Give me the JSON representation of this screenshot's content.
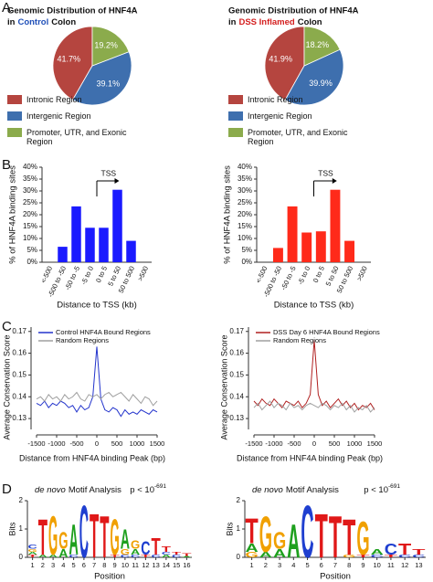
{
  "panel_labels": [
    "A",
    "B",
    "C",
    "D"
  ],
  "chart_data": [
    {
      "type": "pie",
      "title": "Genomic Distribution of HNF4A",
      "subtitle": [
        {
          "text": "in"
        },
        {
          "text": "Control",
          "color": "#1f4fb8"
        },
        {
          "text": "Colon"
        }
      ],
      "categories": [
        "Intronic Region",
        "Intergenic Region",
        "Promoter, UTR, and Exonic Region"
      ],
      "values": [
        41.7,
        39.1,
        19.2
      ],
      "value_labels": [
        "41.7%",
        "39.1%",
        "19.2%"
      ],
      "colors": [
        "#b5453f",
        "#3e6fae",
        "#8bab4c"
      ]
    },
    {
      "type": "pie",
      "title": "Genomic Distribution of HNF4A",
      "subtitle": [
        {
          "text": "in"
        },
        {
          "text": "DSS Inflamed",
          "color": "#d42020"
        },
        {
          "text": "Colon"
        }
      ],
      "categories": [
        "Intronic Region",
        "Intergenic Region",
        "Promoter, UTR, and Exonic Region"
      ],
      "values": [
        41.9,
        39.9,
        18.2
      ],
      "value_labels": [
        "41.9%",
        "39.9%",
        "18.2%"
      ],
      "colors": [
        "#b5453f",
        "#3e6fae",
        "#8bab4c"
      ]
    },
    {
      "type": "bar",
      "annotation": "TSS",
      "categories": [
        "<-500",
        "-500 to -50",
        "-50 to -5",
        "-5 to 0",
        "0 to 5",
        "5 to 50",
        "50 to 500",
        ">500"
      ],
      "values": [
        0,
        6.5,
        23.5,
        14.5,
        14.5,
        30.5,
        9,
        0
      ],
      "color": "#1a1aff",
      "ylim": [
        0,
        40
      ],
      "yticks": [
        {
          "value": 0,
          "label": "0%"
        },
        {
          "value": 5,
          "label": "5%"
        },
        {
          "value": 10,
          "label": "10%"
        },
        {
          "value": 15,
          "label": "15%"
        },
        {
          "value": 20,
          "label": "20%"
        },
        {
          "value": 25,
          "label": "25%"
        },
        {
          "value": 30,
          "label": "30%"
        },
        {
          "value": 35,
          "label": "35%"
        },
        {
          "value": 40,
          "label": "40%"
        }
      ],
      "xlabel": "Distance to TSS (kb)",
      "ylabel": "% of HNF4A binding sites"
    },
    {
      "type": "bar",
      "annotation": "TSS",
      "categories": [
        "<-500",
        "-500 to -50",
        "-50 to -5",
        "-5 to 0",
        "0 to 5",
        "5 to 50",
        "50 to 500",
        ">500"
      ],
      "values": [
        0,
        6,
        23.5,
        12.5,
        13,
        30.5,
        9,
        0
      ],
      "color": "#ff2a1a",
      "ylim": [
        0,
        40
      ],
      "yticks": [
        {
          "value": 0,
          "label": "0%"
        },
        {
          "value": 5,
          "label": "5%"
        },
        {
          "value": 10,
          "label": "10%"
        },
        {
          "value": 15,
          "label": "15%"
        },
        {
          "value": 20,
          "label": "20%"
        },
        {
          "value": 25,
          "label": "25%"
        },
        {
          "value": 30,
          "label": "30%"
        },
        {
          "value": 35,
          "label": "35%"
        },
        {
          "value": 40,
          "label": "40%"
        }
      ],
      "xlabel": "Distance to TSS (kb)",
      "ylabel": "% of HNF4A binding sites"
    },
    {
      "type": "line",
      "x": [
        -1500,
        -1400,
        -1300,
        -1200,
        -1100,
        -1000,
        -900,
        -800,
        -700,
        -600,
        -500,
        -400,
        -300,
        -200,
        -100,
        0,
        100,
        200,
        300,
        400,
        500,
        600,
        700,
        800,
        900,
        1000,
        1100,
        1200,
        1300,
        1400,
        1500
      ],
      "series": [
        {
          "name": "Control HNF4A Bound Regions",
          "color": "#2233cc",
          "values": [
            0.137,
            0.136,
            0.138,
            0.135,
            0.137,
            0.136,
            0.138,
            0.137,
            0.135,
            0.136,
            0.133,
            0.136,
            0.134,
            0.135,
            0.14,
            0.163,
            0.139,
            0.134,
            0.133,
            0.135,
            0.134,
            0.131,
            0.134,
            0.132,
            0.133,
            0.132,
            0.134,
            0.133,
            0.132,
            0.134,
            0.133
          ]
        },
        {
          "name": "Random Regions",
          "color": "#a0a0a0",
          "values": [
            0.139,
            0.14,
            0.138,
            0.141,
            0.139,
            0.14,
            0.138,
            0.141,
            0.139,
            0.14,
            0.142,
            0.139,
            0.138,
            0.141,
            0.14,
            0.141,
            0.139,
            0.141,
            0.142,
            0.14,
            0.141,
            0.142,
            0.14,
            0.138,
            0.141,
            0.139,
            0.137,
            0.14,
            0.139,
            0.136,
            0.138
          ]
        }
      ],
      "xlim": [
        -1500,
        1500
      ],
      "xticks": [
        -1500,
        -1000,
        -500,
        0,
        500,
        1000,
        1500
      ],
      "ylim": [
        0.125,
        0.172
      ],
      "yticks": [
        0.13,
        0.14,
        0.15,
        0.16,
        0.17
      ],
      "xlabel": "Distance from  HNF4A binding Peak (bp)",
      "ylabel": "Average Conservation Score"
    },
    {
      "type": "line",
      "x": [
        -1500,
        -1400,
        -1300,
        -1200,
        -1100,
        -1000,
        -900,
        -800,
        -700,
        -600,
        -500,
        -400,
        -300,
        -200,
        -100,
        0,
        100,
        200,
        300,
        400,
        500,
        600,
        700,
        800,
        900,
        1000,
        1100,
        1200,
        1300,
        1400,
        1500
      ],
      "series": [
        {
          "name": "DSS Day 6 HNF4A Bound Regions",
          "color": "#b02020",
          "values": [
            0.138,
            0.136,
            0.139,
            0.137,
            0.136,
            0.139,
            0.137,
            0.135,
            0.138,
            0.137,
            0.136,
            0.138,
            0.135,
            0.137,
            0.141,
            0.166,
            0.141,
            0.136,
            0.138,
            0.135,
            0.137,
            0.139,
            0.136,
            0.138,
            0.135,
            0.137,
            0.134,
            0.136,
            0.135,
            0.137,
            0.134
          ]
        },
        {
          "name": "Random Regions",
          "color": "#a0a0a0",
          "values": [
            0.135,
            0.137,
            0.134,
            0.136,
            0.138,
            0.135,
            0.137,
            0.136,
            0.134,
            0.137,
            0.135,
            0.136,
            0.134,
            0.136,
            0.137,
            0.136,
            0.135,
            0.137,
            0.136,
            0.134,
            0.136,
            0.135,
            0.137,
            0.134,
            0.136,
            0.133,
            0.135,
            0.134,
            0.136,
            0.133,
            0.135
          ]
        }
      ],
      "xlim": [
        -1500,
        1500
      ],
      "xticks": [
        -1500,
        -1000,
        -500,
        0,
        500,
        1000,
        1500
      ],
      "ylim": [
        0.125,
        0.172
      ],
      "yticks": [
        0.13,
        0.14,
        0.15,
        0.16,
        0.17
      ],
      "xlabel": "Distance from  HNF4A binding Peak (bp)",
      "ylabel": "Average Conservation Score"
    },
    {
      "type": "logo",
      "title": [
        {
          "text": "de novo",
          "style": "italic"
        },
        {
          "text": "Motif Analysis"
        }
      ],
      "annotation": "p < 10",
      "annotation_exponent": "-691",
      "letter_colors": {
        "A": "#1ea01e",
        "C": "#1f3fd0",
        "G": "#f0a000",
        "T": "#e01818"
      },
      "xticks": [
        1,
        2,
        3,
        4,
        5,
        6,
        7,
        8,
        9,
        10,
        11,
        12,
        13,
        14,
        15,
        16
      ],
      "positions": [
        [
          {
            "letter": "T",
            "bits": 0.1
          },
          {
            "letter": "A",
            "bits": 0.1
          },
          {
            "letter": "G",
            "bits": 0.1
          },
          {
            "letter": "C",
            "bits": 0.15
          }
        ],
        [
          {
            "letter": "A",
            "bits": 0.1
          },
          {
            "letter": "T",
            "bits": 1.3
          }
        ],
        [
          {
            "letter": "A",
            "bits": 0.1
          },
          {
            "letter": "G",
            "bits": 1.4
          }
        ],
        [
          {
            "letter": "A",
            "bits": 0.3
          },
          {
            "letter": "G",
            "bits": 0.6
          }
        ],
        [
          {
            "letter": "C",
            "bits": 0.1
          },
          {
            "letter": "A",
            "bits": 1.1
          }
        ],
        [
          {
            "letter": "C",
            "bits": 1.9
          }
        ],
        [
          {
            "letter": "T",
            "bits": 1.6
          }
        ],
        [
          {
            "letter": "T",
            "bits": 1.5
          }
        ],
        [
          {
            "letter": "T",
            "bits": 0.1
          },
          {
            "letter": "G",
            "bits": 1.3
          }
        ],
        [
          {
            "letter": "C",
            "bits": 0.1
          },
          {
            "letter": "G",
            "bits": 0.2
          },
          {
            "letter": "A",
            "bits": 0.7
          }
        ],
        [
          {
            "letter": "C",
            "bits": 0.1
          },
          {
            "letter": "A",
            "bits": 0.2
          },
          {
            "letter": "G",
            "bits": 0.3
          }
        ],
        [
          {
            "letter": "T",
            "bits": 0.1
          },
          {
            "letter": "C",
            "bits": 0.5
          }
        ],
        [
          {
            "letter": "C",
            "bits": 0.1
          },
          {
            "letter": "T",
            "bits": 0.6
          }
        ],
        [
          {
            "letter": "A",
            "bits": 0.1
          },
          {
            "letter": "C",
            "bits": 0.1
          },
          {
            "letter": "T",
            "bits": 0.2
          }
        ],
        [
          {
            "letter": "C",
            "bits": 0.1
          },
          {
            "letter": "T",
            "bits": 0.1
          }
        ],
        [
          {
            "letter": "A",
            "bits": 0.05
          },
          {
            "letter": "T",
            "bits": 0.1
          }
        ]
      ],
      "ylim": [
        0,
        2
      ],
      "yticks": [
        0,
        1,
        2
      ],
      "xlabel": "Position",
      "ylabel": "Bits"
    },
    {
      "type": "logo",
      "title": [
        {
          "text": "de novo",
          "style": "italic"
        },
        {
          "text": "Motif Analysis"
        }
      ],
      "annotation": "p < 10",
      "annotation_exponent": "-691",
      "letter_colors": {
        "A": "#1ea01e",
        "C": "#1f3fd0",
        "G": "#f0a000",
        "T": "#e01818"
      },
      "xticks": [
        1,
        2,
        3,
        4,
        5,
        6,
        7,
        8,
        9,
        10,
        11,
        12,
        13
      ],
      "positions": [
        [
          {
            "letter": "G",
            "bits": 0.2
          },
          {
            "letter": "A",
            "bits": 0.3
          },
          {
            "letter": "T",
            "bits": 0.9
          }
        ],
        [
          {
            "letter": "A",
            "bits": 0.2
          },
          {
            "letter": "G",
            "bits": 1.3
          }
        ],
        [
          {
            "letter": "A",
            "bits": 0.3
          },
          {
            "letter": "G",
            "bits": 0.6
          }
        ],
        [
          {
            "letter": "A",
            "bits": 1.2
          }
        ],
        [
          {
            "letter": "C",
            "bits": 1.9
          }
        ],
        [
          {
            "letter": "T",
            "bits": 1.6
          }
        ],
        [
          {
            "letter": "T",
            "bits": 1.5
          }
        ],
        [
          {
            "letter": "G",
            "bits": 0.1
          },
          {
            "letter": "T",
            "bits": 1.3
          }
        ],
        [
          {
            "letter": "T",
            "bits": 0.1
          },
          {
            "letter": "G",
            "bits": 1.2
          }
        ],
        [
          {
            "letter": "C",
            "bits": 0.1
          },
          {
            "letter": "A",
            "bits": 0.2
          }
        ],
        [
          {
            "letter": "T",
            "bits": 0.1
          },
          {
            "letter": "C",
            "bits": 0.4
          }
        ],
        [
          {
            "letter": "C",
            "bits": 0.1
          },
          {
            "letter": "T",
            "bits": 0.4
          }
        ],
        [
          {
            "letter": "C",
            "bits": 0.1
          },
          {
            "letter": "T",
            "bits": 0.2
          }
        ]
      ],
      "ylim": [
        0,
        2
      ],
      "yticks": [
        0,
        1,
        2
      ],
      "xlabel": "Position",
      "ylabel": "Bits"
    }
  ]
}
